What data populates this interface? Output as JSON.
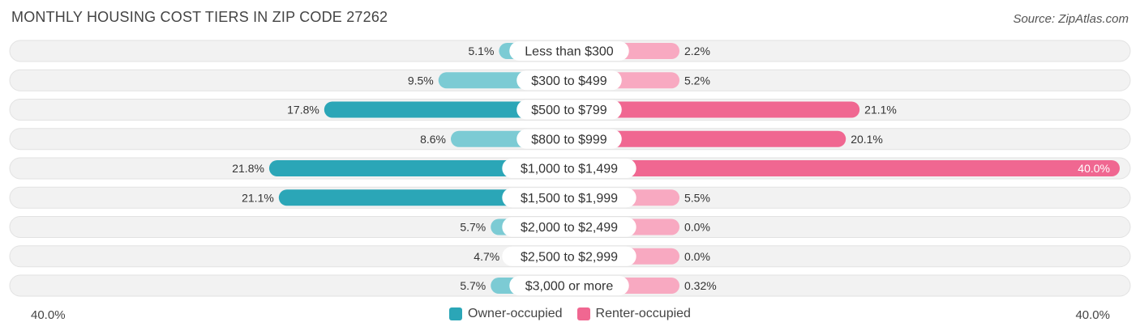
{
  "title": "MONTHLY HOUSING COST TIERS IN ZIP CODE 27262",
  "source": "Source: ZipAtlas.com",
  "colors": {
    "owner": "#2ba6b7",
    "owner_light": "#7ccbd4",
    "renter": "#f06791",
    "renter_light": "#f8a9c1",
    "row_bg": "#f2f2f2"
  },
  "chart_data": {
    "type": "bar",
    "orientation": "horizontal-diverging",
    "categories": [
      "Less than $300",
      "$300 to $499",
      "$500 to $799",
      "$800 to $999",
      "$1,000 to $1,499",
      "$1,500 to $1,999",
      "$2,000 to $2,499",
      "$2,500 to $2,999",
      "$3,000 or more"
    ],
    "series": [
      {
        "name": "Owner-occupied",
        "values": [
          5.1,
          9.5,
          17.8,
          8.6,
          21.8,
          21.1,
          5.7,
          4.7,
          5.7
        ],
        "labels": [
          "5.1%",
          "9.5%",
          "17.8%",
          "8.6%",
          "21.8%",
          "21.1%",
          "5.7%",
          "4.7%",
          "5.7%"
        ]
      },
      {
        "name": "Renter-occupied",
        "values": [
          2.2,
          5.2,
          21.1,
          20.1,
          40.0,
          5.5,
          0.0,
          0.0,
          0.32
        ],
        "labels": [
          "2.2%",
          "5.2%",
          "21.1%",
          "20.1%",
          "40.0%",
          "5.5%",
          "0.0%",
          "0.0%",
          "0.32%"
        ]
      }
    ],
    "xlim": [
      -40,
      40
    ],
    "axis_left_label": "40.0%",
    "axis_right_label": "40.0%",
    "legend_position": "bottom-center"
  }
}
